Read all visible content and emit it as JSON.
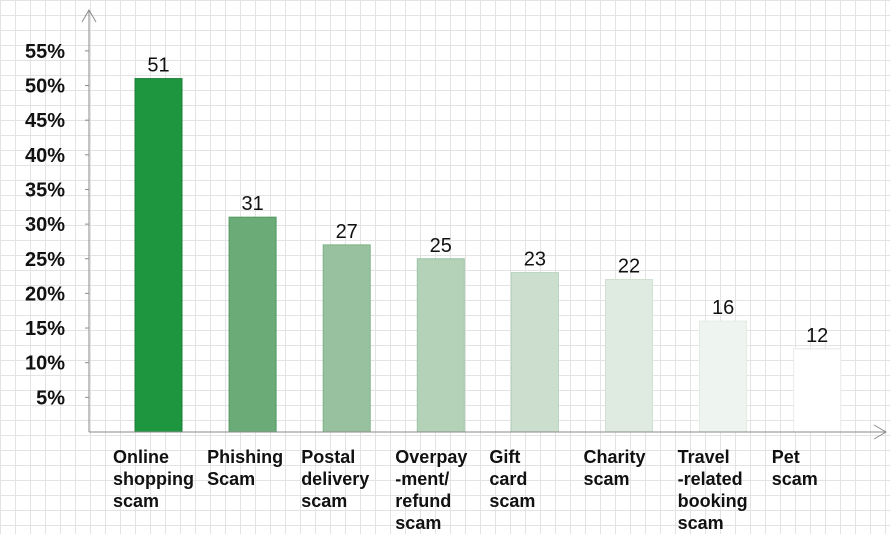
{
  "chart_data": {
    "type": "bar",
    "categories": [
      [
        "Online",
        "shopping",
        "scam"
      ],
      [
        "Phishing",
        "Scam"
      ],
      [
        "Postal",
        "delivery",
        "scam"
      ],
      [
        "Overpay",
        "-ment/",
        "refund",
        "scam"
      ],
      [
        "Gift",
        "card",
        "scam"
      ],
      [
        "Charity",
        "scam"
      ],
      [
        "Travel",
        "-related",
        "booking",
        "scam"
      ],
      [
        "Pet",
        "scam"
      ]
    ],
    "values": [
      51,
      31,
      27,
      25,
      23,
      22,
      16,
      12
    ],
    "data_labels": [
      "51",
      "31",
      "27",
      "25",
      "23",
      "22",
      "16",
      "12"
    ],
    "y_ticks": [
      "5%",
      "10%",
      "15%",
      "20%",
      "25%",
      "30%",
      "35%",
      "40%",
      "45%",
      "50%",
      "55%"
    ],
    "y_tick_values": [
      5,
      10,
      15,
      20,
      25,
      30,
      35,
      40,
      45,
      50,
      55
    ],
    "ylim": [
      0,
      60
    ],
    "grid": true,
    "bar_colors": [
      "#1e9640",
      "#6aab78",
      "#98c29f",
      "#b3d2b8",
      "#ccdfcf",
      "#dfebe0",
      "#eef4ef",
      "#ffffff"
    ],
    "bar_edge_colors": [
      "#1e7d38",
      "#4f9a60",
      "#7bb286",
      "#9cc4a3",
      "#b7d3bc",
      "#cfe0d2",
      "#e2ece4",
      "#e6ece7"
    ]
  }
}
